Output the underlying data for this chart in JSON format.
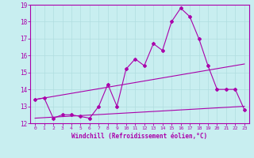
{
  "xlabel": "Windchill (Refroidissement éolien,°C)",
  "background_color": "#c8eef0",
  "grid_color": "#b0dde0",
  "line_color": "#aa00aa",
  "xlim": [
    -0.5,
    23.5
  ],
  "ylim": [
    12,
    19
  ],
  "yticks": [
    12,
    13,
    14,
    15,
    16,
    17,
    18,
    19
  ],
  "xticks": [
    0,
    1,
    2,
    3,
    4,
    5,
    6,
    7,
    8,
    9,
    10,
    11,
    12,
    13,
    14,
    15,
    16,
    17,
    18,
    19,
    20,
    21,
    22,
    23
  ],
  "series1_x": [
    0,
    1,
    2,
    3,
    4,
    5,
    6,
    7,
    8,
    9,
    10,
    11,
    12,
    13,
    14,
    15,
    16,
    17,
    18,
    19,
    20,
    21,
    22,
    23
  ],
  "series1_y": [
    13.4,
    13.5,
    12.3,
    12.5,
    12.5,
    12.4,
    12.3,
    13.0,
    14.3,
    13.0,
    15.2,
    15.8,
    15.4,
    16.7,
    16.3,
    18.0,
    18.8,
    18.3,
    17.0,
    15.4,
    14.0,
    14.0,
    14.0,
    12.8
  ],
  "series2_x": [
    0,
    23
  ],
  "series2_y": [
    13.4,
    15.5
  ],
  "series3_x": [
    0,
    23
  ],
  "series3_y": [
    12.3,
    13.0
  ]
}
